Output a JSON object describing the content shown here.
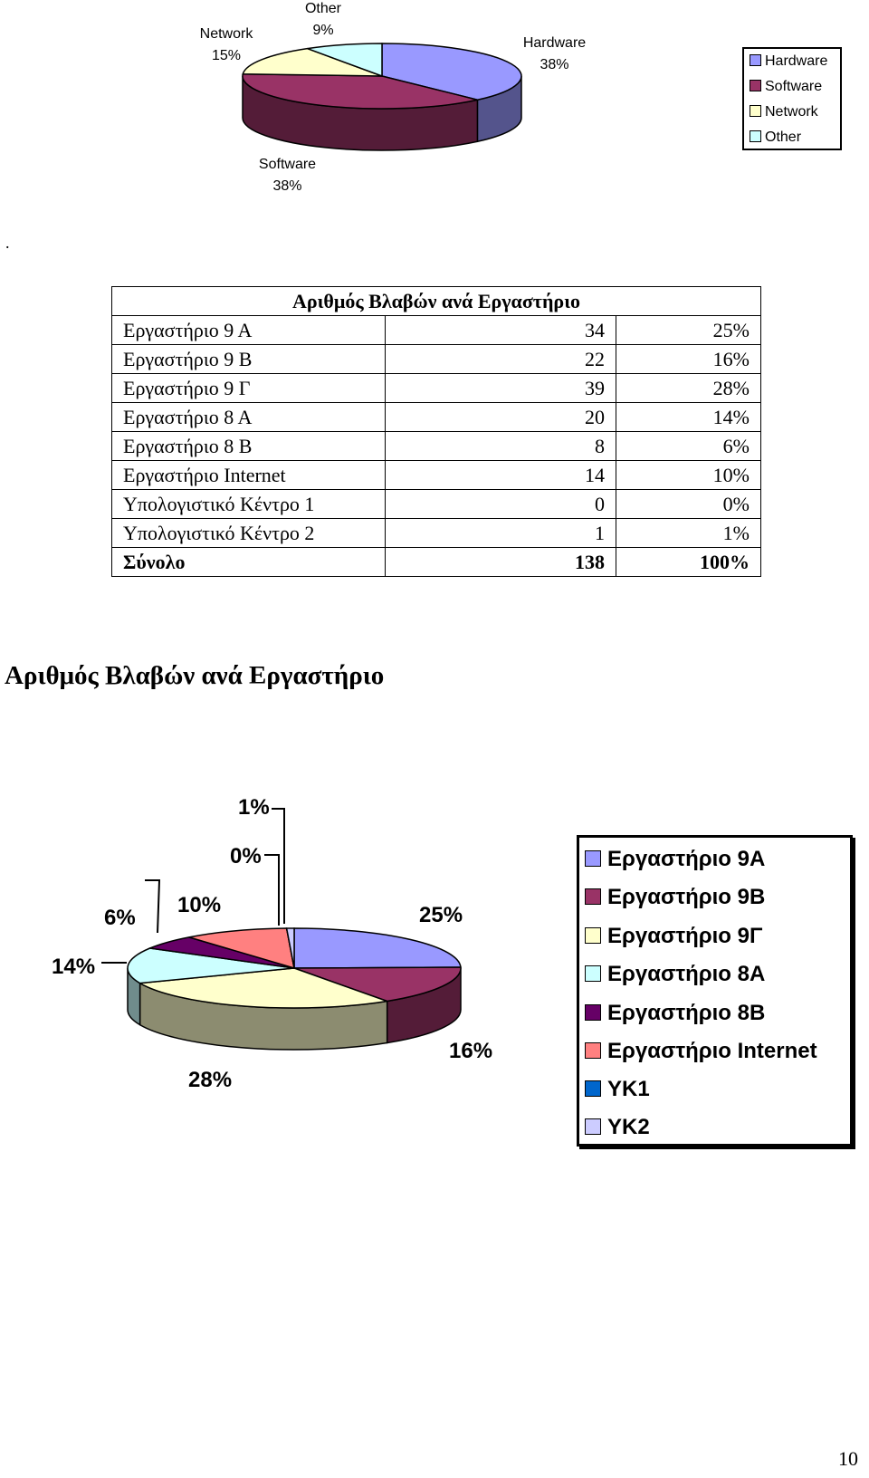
{
  "chart_data": [
    {
      "type": "pie",
      "categories": [
        "Hardware",
        "Software",
        "Network",
        "Other"
      ],
      "values": [
        38,
        38,
        15,
        9
      ],
      "data_labels": [
        {
          "category": "Hardware",
          "value": "38%"
        },
        {
          "category": "Software",
          "value": "38%"
        },
        {
          "category": "Network",
          "value": "15%"
        },
        {
          "category": "Other",
          "value": "9%"
        }
      ],
      "colors": [
        "#9999ff",
        "#993366",
        "#ffffcc",
        "#ccffff"
      ],
      "legend": {
        "placement": "right",
        "entries": [
          "Hardware",
          "Software",
          "Network",
          "Other"
        ]
      }
    },
    {
      "type": "pie",
      "title": "Αριθμός Βλαβών ανά Εργαστήριο",
      "categories": [
        "Εργαστήριο 9Α",
        "Εργαστήριο 9Β",
        "Εργαστήριο 9Γ",
        "Εργαστήριο 8Α",
        "Εργαστήριο 8Β",
        "Εργαστήριο Internet",
        "ΥΚ1",
        "ΥΚ2"
      ],
      "values": [
        34,
        22,
        39,
        20,
        8,
        14,
        0,
        1
      ],
      "data_labels": [
        "25%",
        "16%",
        "28%",
        "14%",
        "6%",
        "10%",
        "0%",
        "1%"
      ],
      "colors": [
        "#9999ff",
        "#993366",
        "#ffffcc",
        "#ccffff",
        "#660066",
        "#ff8080",
        "#0066cc",
        "#ccccff"
      ],
      "legend": {
        "placement": "right",
        "entries": [
          "Εργαστήριο 9Α",
          "Εργαστήριο 9Β",
          "Εργαστήριο 9Γ",
          "Εργαστήριο 8Α",
          "Εργαστήριο 8Β",
          "Εργαστήριο Internet",
          "ΥΚ1",
          "ΥΚ2"
        ]
      }
    }
  ],
  "separator_dot": ".",
  "table": {
    "caption": "Αριθμός Βλαβών ανά Εργαστήριο",
    "rows": [
      {
        "label": "Εργαστήριο 9 Α",
        "count": "34",
        "percent": "25%"
      },
      {
        "label": "Εργαστήριο 9 Β",
        "count": "22",
        "percent": "16%"
      },
      {
        "label": "Εργαστήριο 9 Γ",
        "count": "39",
        "percent": "28%"
      },
      {
        "label": "Εργαστήριο 8 Α",
        "count": "20",
        "percent": "14%"
      },
      {
        "label": "Εργαστήριο 8 Β",
        "count": "8",
        "percent": "6%"
      },
      {
        "label": "Εργαστήριο Internet",
        "count": "14",
        "percent": "10%"
      },
      {
        "label": "Υπολογιστικό Κέντρο 1",
        "count": "0",
        "percent": "0%"
      },
      {
        "label": "Υπολογιστικό Κέντρο 2",
        "count": "1",
        "percent": "1%"
      }
    ],
    "total": {
      "label": "Σύνολο",
      "count": "138",
      "percent": "100%"
    }
  },
  "section_heading": "Αριθμός Βλαβών ανά Εργαστήριο",
  "page_number": "10"
}
